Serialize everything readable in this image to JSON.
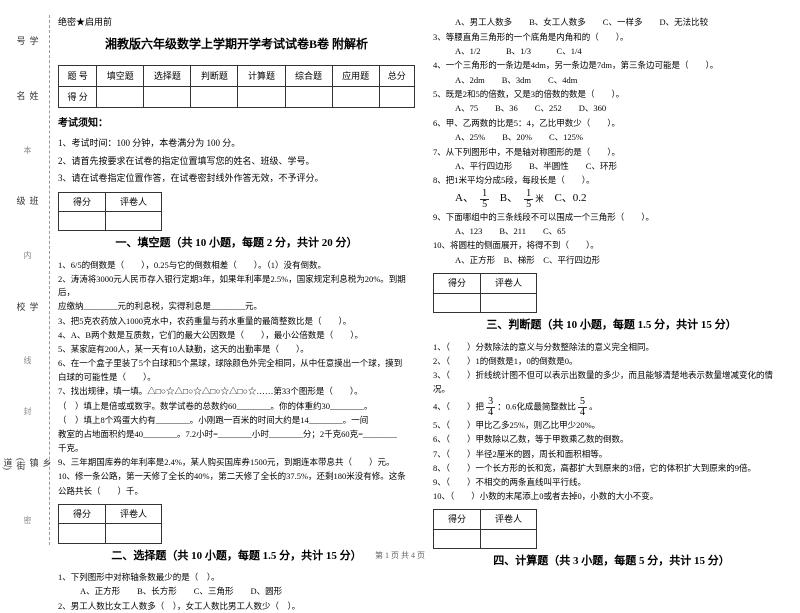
{
  "secret": "绝密★启用前",
  "title": "湘教版六年级数学上学期开学考试试卷B卷 附解析",
  "margin": {
    "labels": [
      "学号",
      "姓名",
      "班级",
      "学校",
      "乡镇(街道)"
    ],
    "cutline": [
      "本",
      "内",
      "线",
      "封",
      "密"
    ]
  },
  "score_table": {
    "row1": [
      "题  号",
      "填空题",
      "选择题",
      "判断题",
      "计算题",
      "综合题",
      "应用题",
      "总分"
    ],
    "row2": [
      "得  分",
      "",
      "",
      "",
      "",
      "",
      "",
      ""
    ]
  },
  "notice": {
    "head": "考试须知：",
    "items": [
      "1、考试时间：100 分钟，本卷满分为 100 分。",
      "2、请首先按要求在试卷的指定位置填写您的姓名、班级、学号。",
      "3、请在试卷指定位置作答，在试卷密封线外作答无效，不予评分。"
    ]
  },
  "scorer": {
    "c1": "得分",
    "c2": "评卷人"
  },
  "sections": {
    "s1": "一、填空题（共 10 小题，每题 2 分，共计 20 分）",
    "s2": "二、选择题（共 10 小题，每题 1.5 分，共计 15 分）",
    "s3": "三、判断题（共 10 小题，每题 1.5 分，共计 15 分）",
    "s4": "四、计算题（共 3 小题，每题 5 分，共计 15 分）"
  },
  "fill": {
    "q1": "1、6/5的倒数是（　　），0.25与它的倒数相差（　　）。（1）没有倒数。",
    "q2a": "2、涛涛将3000元人民币存入银行定期3年，如果年利率是2.5%，国家规定利息税为20%。到期后，",
    "q2b": "应缴纳________元的利息税，实得利息是________元。",
    "q3": "3、把5克农药放入1000克水中，农药重量与药水重量的最简整数比是（　　）。",
    "q4": "4、A、B两个数是互质数，它们的最大公因数是（　　），最小公倍数是（　　）。",
    "q5": "5、某家庭有200人，某一天有10人缺勤，这天的出勤率是（　　）。",
    "q6a": "6、在一个盒子里装了5个白球和5个黑球，球除颜色外完全相同，从中任意摸出一个球，摸到",
    "q6b": "白球的可能性是（　　）。",
    "q7a": "7、找出规律，填一填。△□○☆△□○☆△□○☆△□○☆……第33个图形是（　　）。",
    "q7b": "（　）填上是倍或或数字。数学试卷的总数约60________。你的体重约30________。",
    "q8a": "（　）填上8个鸡蛋大约有________。小刚跑一百米的时间大约是14________。一间",
    "q8b": "教室的占地面积约是40________。7.2小时=________小时________分；2千克60克=________",
    "q8c": "千克。",
    "q9": "9、三年期国库券的年利率是2.4%，某人购买国库券1500元，到期连本带息共（　　）元。",
    "q10a": "10、修一条公路，第一天修了全长的40%，第二天修了全长的37.5%，还剩180米没有修。这条",
    "q10b": "公路共长（　　）千。"
  },
  "choice": {
    "q1": "1、下列图形中对称轴条数最少的是（　）。",
    "q1o": "A、正方形　　B、长方形　　C、三角形　　D、圆形",
    "q2": "2、男工人数比女工人数多（　），女工人数比男工人数少（　）。",
    "q2a": "A、男工人数多　　B、女工人数多　　C、一样多　　D、无法比较",
    "q3": "3、等腰直角三角形的一个底角是内角和的（　　）。",
    "q3o": "A、1/2　　　B、1/3　　　C、1/4",
    "q4": "4、一个三角形的一条边是4dm，另一条边是7dm，第三条边可能是（　　）。",
    "q4o": "A、2dm　　B、3dm　　C、4dm",
    "q5": "5、既是2和5的倍数，又是3的倍数的数是（　　）。",
    "q5o": "A、75　　B、36　　C、252　　D、360",
    "q6": "6、甲、乙两数的比是5：4，乙比甲数少（　　）。",
    "q6o": "A、25%　　B、20%　　C、125%",
    "q7": "7、从下列图形中，不是轴对称图形的是（　　）。",
    "q7o": "A、平行四边形　　B、半圆性　　C、环形",
    "q8": "8、把1米平均分成5段，每段长是（　　）。",
    "q8a": "A、",
    "q8b": "B、",
    "q8c": "米",
    "q8d": "C、0.2",
    "q9": "9、下面哪组中的三条线段不可以围成一个三角形（　　）。",
    "q9o": "A、123　　B、211　　C、65",
    "q10": "10、将圆柱的侧面展开，将得不到（　　）。",
    "q10o": "A、正方形　B、梯形　C、平行四边形"
  },
  "judge": {
    "q1": "1、（　　）分数除法的意义与分数整除法的意义完全相同。",
    "q2": "2、（　　）1的倒数是1，0的倒数是0。",
    "q3a": "3、（　　）折线统计图不但可以表示出数量的多少，而且能够清楚地表示数量增减变化的情",
    "q3b": "况。",
    "q4a": "4、（　　）把",
    "q4b": "：0.6化成最简整数比",
    "q4c": "。",
    "q5": "5、（　　）甲比乙多25%，则乙比甲少20%。",
    "q6": "6、（　　）甲数除以乙数，等于甲数乘乙数的倒数。",
    "q7": "7、（　　）半径2厘米的圆，周长和面积相等。",
    "q8": "8、（　　）一个长方形的长和宽，高都扩大到原来的3倍，它的体积扩大到原来的9倍。",
    "q9": "9、（　　）不相交的两条直线叫平行线。",
    "q10": "10、（　　）小数的末尾添上0或者去掉0，小数的大小不变。"
  },
  "frac": {
    "n1": "1",
    "d1": "5",
    "n2": "1",
    "d2": "5",
    "n3": "3",
    "d3": "4",
    "n4": "5",
    "d4": "4"
  },
  "footer": "第 1 页 共 4 页"
}
